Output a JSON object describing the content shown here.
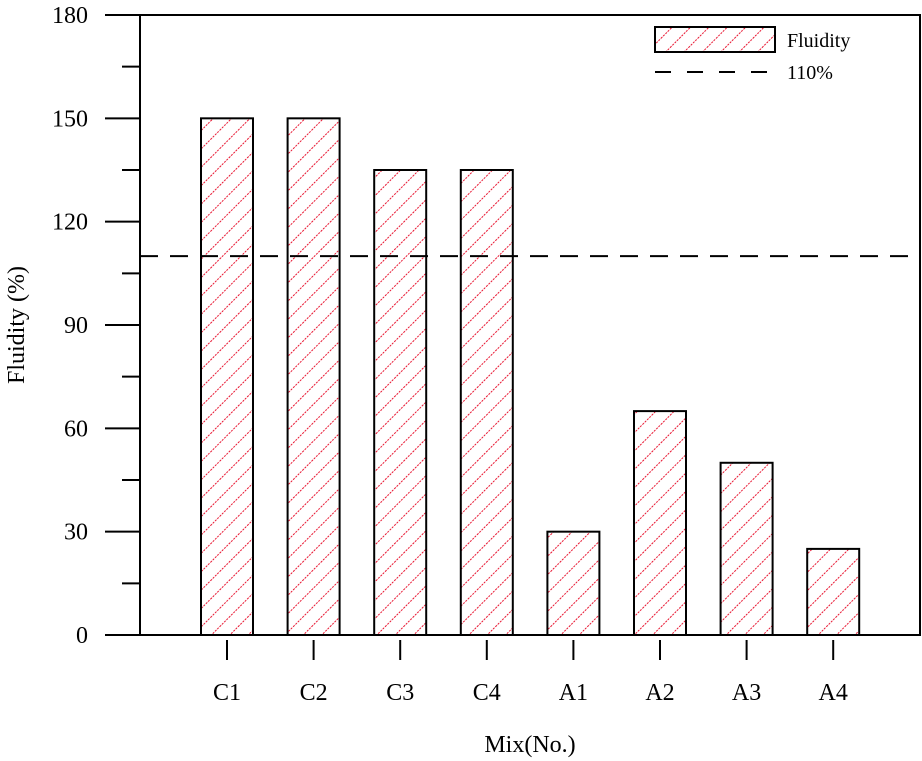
{
  "chart_data": {
    "type": "bar",
    "title": "",
    "xlabel": "Mix(No.)",
    "ylabel": "Fluidity (%)",
    "ylim": [
      0,
      180
    ],
    "yticks": [
      0,
      30,
      60,
      90,
      120,
      150,
      180
    ],
    "categories": [
      "C1",
      "C2",
      "C3",
      "C4",
      "A1",
      "A2",
      "A3",
      "A4"
    ],
    "series": [
      {
        "name": "Fluidity",
        "values": [
          150,
          150,
          135,
          135,
          30,
          65,
          50,
          25
        ],
        "color": "#e8112d",
        "pattern": "diagonal-hatch"
      }
    ],
    "reference_lines": [
      {
        "name": "110%",
        "value": 110,
        "style": "dashed",
        "color": "#000000"
      }
    ],
    "legend": {
      "position": "top-right",
      "entries": [
        "Fluidity",
        "110%"
      ]
    },
    "grid": false
  }
}
